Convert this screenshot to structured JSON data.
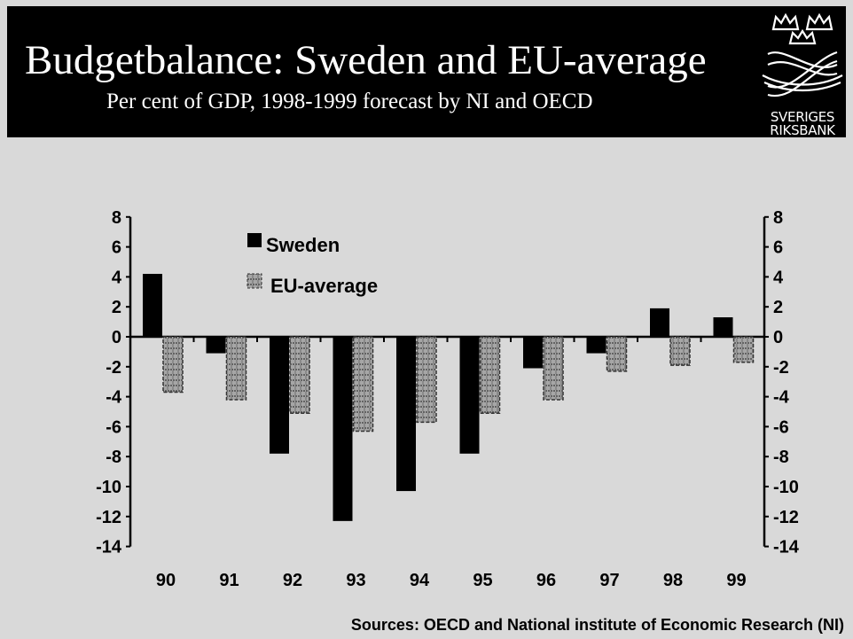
{
  "header": {
    "title": "Budgetbalance: Sweden and EU-average",
    "subtitle": "Per cent of GDP, 1998-1999 forecast by NI and OECD",
    "logo_line1": "SVERIGES",
    "logo_line2": "RIKSBANK",
    "logo_icon": "crowned-crest-icon"
  },
  "chart_data": {
    "type": "bar",
    "title": "Budgetbalance: Sweden and EU-average",
    "subtitle": "Per cent of GDP, 1998-1999 forecast by NI and OECD",
    "categories": [
      "90",
      "91",
      "92",
      "93",
      "94",
      "95",
      "96",
      "97",
      "98",
      "99"
    ],
    "series": [
      {
        "name": "Sweden",
        "color": "#000000",
        "values": [
          4.2,
          -1.1,
          -7.8,
          -12.3,
          -10.3,
          -7.8,
          -2.1,
          -1.1,
          1.9,
          1.3
        ]
      },
      {
        "name": "EU-average",
        "color": "#808080",
        "pattern": "dashed-hatch",
        "values": [
          -3.7,
          -4.2,
          -5.1,
          -6.3,
          -5.7,
          -5.1,
          -4.2,
          -2.3,
          -1.9,
          -1.7
        ]
      }
    ],
    "ylim": [
      -14,
      8
    ],
    "yticks": [
      8,
      6,
      4,
      2,
      0,
      -2,
      -4,
      -6,
      -8,
      -10,
      -12,
      -14
    ],
    "ytick_labels": [
      "8",
      "6",
      "4",
      "2",
      "0",
      "-2",
      "-4",
      "-6",
      "-8",
      "-10",
      "-12",
      "-14"
    ],
    "axes": "left and right",
    "grid": false,
    "legend_position": "top-left"
  },
  "footer": {
    "source": "Sources: OECD and National institute of Economic Research (NI)"
  }
}
